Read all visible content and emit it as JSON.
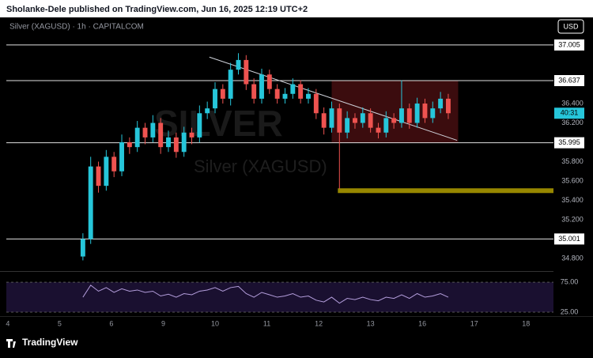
{
  "header": "Sholanke-Dele published on TradingView.com, Jun 16, 2025 12:19 UTC+2",
  "footer": "TradingView",
  "chart_data": {
    "type": "candlestick",
    "symbol": "Silver (XAGUSD) · 1h · CAPITALCOM",
    "watermark_symbol": "SILVER",
    "watermark": "Silver (XAGUSD)",
    "currency": "USD",
    "countdown": "40:31",
    "up_color": "#26c6da",
    "down_color": "#ef5350",
    "x": [
      1.45,
      1.6,
      1.75,
      1.9,
      2.05,
      2.2,
      2.35,
      2.5,
      2.65,
      2.8,
      2.95,
      3.1,
      3.25,
      3.4,
      3.55,
      3.7,
      3.85,
      4.0,
      4.15,
      4.3,
      4.45,
      4.6,
      4.75,
      4.9,
      5.05,
      5.2,
      5.35,
      5.5,
      5.65,
      5.8,
      5.95,
      6.1,
      6.25,
      6.4,
      6.55,
      6.7,
      6.85,
      7.0,
      7.15,
      7.3,
      7.45,
      7.6,
      7.75,
      7.9,
      8.05,
      8.2,
      8.35,
      8.5
    ],
    "open": [
      34.82,
      35.0,
      35.75,
      35.55,
      35.85,
      35.7,
      36.0,
      35.95,
      36.15,
      36.05,
      36.2,
      35.95,
      36.05,
      35.9,
      36.1,
      36.05,
      36.3,
      36.35,
      36.55,
      36.45,
      36.75,
      36.85,
      36.6,
      36.45,
      36.7,
      36.55,
      36.45,
      36.5,
      36.6,
      36.45,
      36.5,
      36.3,
      36.15,
      36.35,
      36.1,
      36.25,
      36.2,
      36.3,
      36.15,
      36.1,
      36.25,
      36.2,
      36.35,
      36.2,
      36.4,
      36.25,
      36.35,
      36.45
    ],
    "high": [
      35.06,
      35.85,
      35.8,
      35.92,
      35.9,
      36.08,
      36.05,
      36.22,
      36.2,
      36.28,
      36.25,
      36.12,
      36.1,
      36.16,
      36.15,
      36.38,
      36.42,
      36.62,
      36.6,
      36.82,
      36.92,
      36.9,
      36.66,
      36.76,
      36.75,
      36.6,
      36.56,
      36.66,
      36.64,
      36.56,
      36.55,
      36.36,
      36.42,
      36.4,
      36.32,
      36.3,
      36.36,
      36.35,
      36.2,
      36.32,
      36.3,
      36.64,
      36.4,
      36.46,
      36.45,
      36.42,
      36.52,
      36.5
    ],
    "low": [
      34.78,
      34.95,
      35.48,
      35.5,
      35.64,
      35.65,
      35.88,
      35.9,
      35.98,
      36.0,
      35.88,
      35.9,
      35.84,
      35.85,
      35.98,
      36.0,
      36.24,
      36.3,
      36.4,
      36.38,
      36.7,
      36.54,
      36.4,
      36.4,
      36.5,
      36.4,
      36.4,
      36.45,
      36.4,
      36.4,
      36.24,
      36.08,
      36.1,
      35.52,
      36.04,
      36.14,
      36.15,
      36.1,
      36.04,
      36.05,
      36.14,
      36.15,
      36.14,
      36.15,
      36.2,
      36.2,
      36.3,
      36.24
    ],
    "close": [
      35.0,
      35.75,
      35.55,
      35.85,
      35.7,
      36.0,
      35.95,
      36.15,
      36.05,
      36.2,
      35.95,
      36.05,
      35.9,
      36.1,
      36.05,
      36.3,
      36.35,
      36.55,
      36.45,
      36.75,
      36.85,
      36.6,
      36.45,
      36.7,
      36.55,
      36.45,
      36.5,
      36.6,
      36.45,
      36.5,
      36.3,
      36.15,
      36.35,
      36.1,
      36.25,
      36.2,
      36.3,
      36.15,
      36.1,
      36.25,
      36.2,
      36.35,
      36.2,
      36.4,
      36.25,
      36.35,
      36.45,
      36.3
    ],
    "rsi": {
      "color": "#b39ddb",
      "values": [
        50,
        70,
        60,
        66,
        58,
        64,
        60,
        62,
        58,
        60,
        52,
        55,
        50,
        56,
        54,
        60,
        62,
        66,
        60,
        66,
        68,
        56,
        50,
        58,
        54,
        50,
        52,
        56,
        50,
        52,
        45,
        42,
        50,
        40,
        48,
        46,
        50,
        46,
        44,
        50,
        48,
        54,
        48,
        56,
        50,
        52,
        56,
        50
      ],
      "ylim": [
        21,
        91
      ],
      "yticks": [
        {
          "value": 75,
          "label": "75.00"
        },
        {
          "value": 25,
          "label": "25.00"
        }
      ]
    },
    "levels": [
      {
        "value": 37.005,
        "label": "37.005"
      },
      {
        "value": 36.637,
        "label": "36.637"
      },
      {
        "value": 35.995,
        "label": "35.995"
      },
      {
        "value": 35.001,
        "label": "35.001"
      }
    ],
    "support_zone": 35.5,
    "trendline": {
      "x": [
        3.89,
        8.67
      ],
      "y": [
        36.88,
        36.02
      ]
    },
    "xlim": [
      -0.15,
      10.53
    ],
    "ylim": [
      34.694,
      37.29
    ],
    "xticks": [
      {
        "value": 0,
        "label": "4"
      },
      {
        "value": 1,
        "label": "5"
      },
      {
        "value": 2,
        "label": "6"
      },
      {
        "value": 3,
        "label": "9"
      },
      {
        "value": 4,
        "label": "10"
      },
      {
        "value": 5,
        "label": "11"
      },
      {
        "value": 6,
        "label": "12"
      },
      {
        "value": 7,
        "label": "13"
      },
      {
        "value": 8,
        "label": "16"
      },
      {
        "value": 9,
        "label": "17"
      },
      {
        "value": 10,
        "label": "18"
      }
    ],
    "yticks": [
      {
        "value": 36.4,
        "label": "36.400"
      },
      {
        "value": 36.2,
        "label": "36.200"
      },
      {
        "value": 35.8,
        "label": "35.800"
      },
      {
        "value": 35.6,
        "label": "35.600"
      },
      {
        "value": 35.4,
        "label": "35.400"
      },
      {
        "value": 35.2,
        "label": "35.200"
      },
      {
        "value": 34.8,
        "label": "34.800"
      }
    ]
  }
}
